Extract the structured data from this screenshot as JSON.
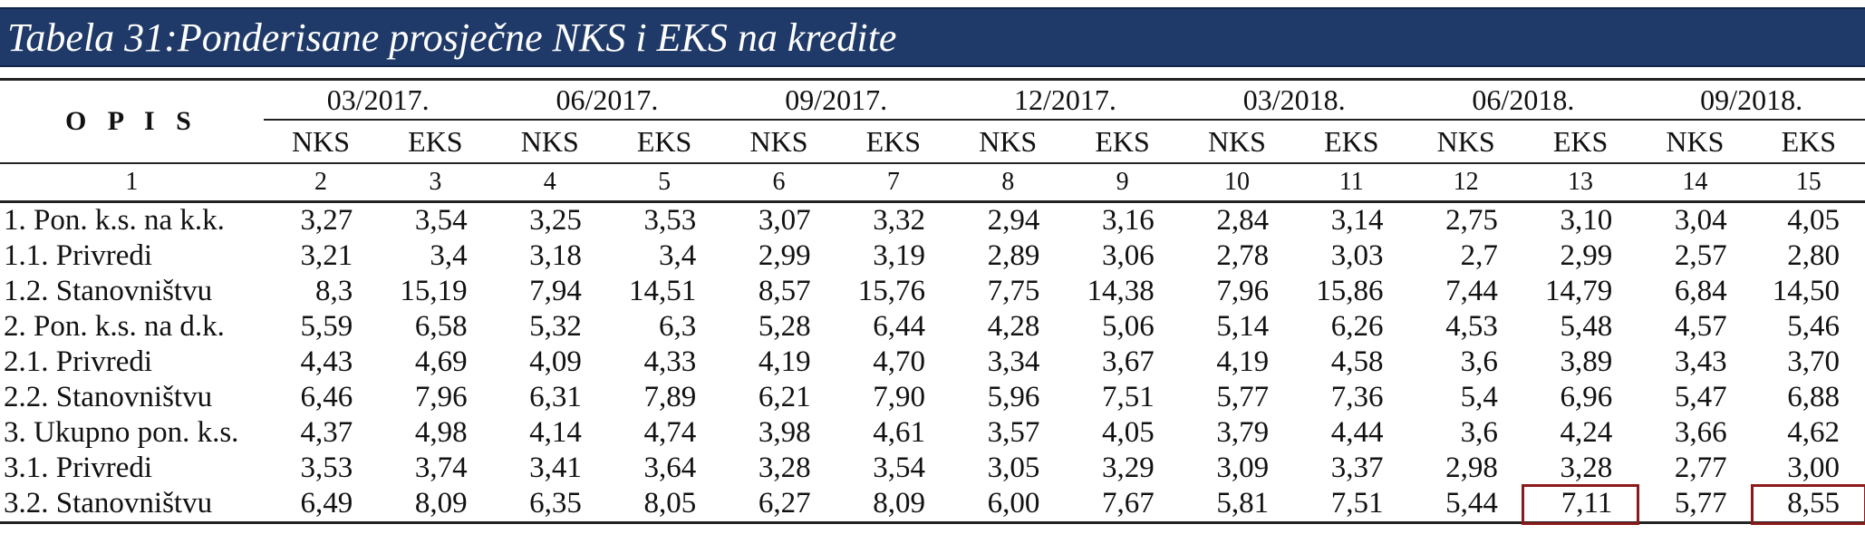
{
  "title": "Tabela 31:Ponderisane prosječne NKS i EKS na kredite",
  "opis_header": "O P I S",
  "periods": [
    "03/2017.",
    "06/2017.",
    "09/2017.",
    "12/2017.",
    "03/2018.",
    "06/2018.",
    "09/2018."
  ],
  "metrics": [
    "NKS",
    "EKS"
  ],
  "column_numbers": [
    "1",
    "2",
    "3",
    "4",
    "5",
    "6",
    "7",
    "8",
    "9",
    "10",
    "11",
    "12",
    "13",
    "14",
    "15"
  ],
  "rows": [
    {
      "label": "1. Pon. k.s. na k.k.",
      "values": [
        "3,27",
        "3,54",
        "3,25",
        "3,53",
        "3,07",
        "3,32",
        "2,94",
        "3,16",
        "2,84",
        "3,14",
        "2,75",
        "3,10",
        "3,04",
        "4,05"
      ]
    },
    {
      "label": "1.1. Privredi",
      "values": [
        "3,21",
        "3,4",
        "3,18",
        "3,4",
        "2,99",
        "3,19",
        "2,89",
        "3,06",
        "2,78",
        "3,03",
        "2,7",
        "2,99",
        "2,57",
        "2,80"
      ]
    },
    {
      "label": "1.2. Stanovništvu",
      "values": [
        "8,3",
        "15,19",
        "7,94",
        "14,51",
        "8,57",
        "15,76",
        "7,75",
        "14,38",
        "7,96",
        "15,86",
        "7,44",
        "14,79",
        "6,84",
        "14,50"
      ]
    },
    {
      "label": "2. Pon. k.s. na d.k.",
      "values": [
        "5,59",
        "6,58",
        "5,32",
        "6,3",
        "5,28",
        "6,44",
        "4,28",
        "5,06",
        "5,14",
        "6,26",
        "4,53",
        "5,48",
        "4,57",
        "5,46"
      ]
    },
    {
      "label": "2.1. Privredi",
      "values": [
        "4,43",
        "4,69",
        "4,09",
        "4,33",
        "4,19",
        "4,70",
        "3,34",
        "3,67",
        "4,19",
        "4,58",
        "3,6",
        "3,89",
        "3,43",
        "3,70"
      ]
    },
    {
      "label": "2.2. Stanovništvu",
      "values": [
        "6,46",
        "7,96",
        "6,31",
        "7,89",
        "6,21",
        "7,90",
        "5,96",
        "7,51",
        "5,77",
        "7,36",
        "5,4",
        "6,96",
        "5,47",
        "6,88"
      ]
    },
    {
      "label": "3. Ukupno pon. k.s.",
      "values": [
        "4,37",
        "4,98",
        "4,14",
        "4,74",
        "3,98",
        "4,61",
        "3,57",
        "4,05",
        "3,79",
        "4,44",
        "3,6",
        "4,24",
        "3,66",
        "4,62"
      ]
    },
    {
      "label": "3.1. Privredi",
      "values": [
        "3,53",
        "3,74",
        "3,41",
        "3,64",
        "3,28",
        "3,54",
        "3,05",
        "3,29",
        "3,09",
        "3,37",
        "2,98",
        "3,28",
        "2,77",
        "3,00"
      ]
    },
    {
      "label": "3.2. Stanovništvu",
      "values": [
        "6,49",
        "8,09",
        "6,35",
        "8,05",
        "6,27",
        "8,09",
        "6,00",
        "7,67",
        "5,81",
        "7,51",
        "5,44",
        "7,11",
        "5,77",
        "8,55"
      ]
    }
  ],
  "highlight_color": "#8b1a1a",
  "header_bar_color": "#1f3a68"
}
